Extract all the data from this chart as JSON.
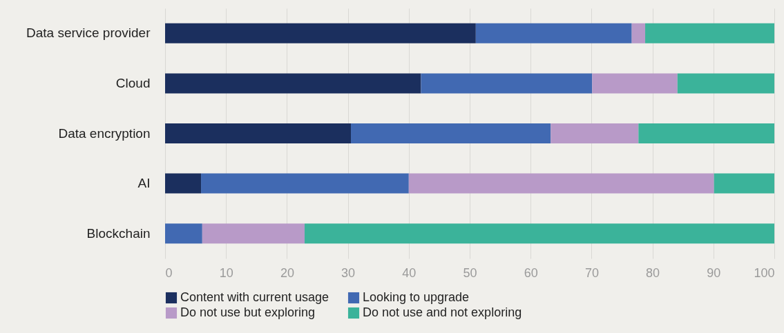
{
  "chart_data": {
    "type": "bar",
    "orientation": "horizontal",
    "stacked": true,
    "categories": [
      "Data service provider",
      "Cloud",
      "Data encryption",
      "AI",
      "Blockchain"
    ],
    "series": [
      {
        "name": "Content with current usage",
        "color": "#1b2f5e",
        "values": [
          51.0,
          42.0,
          30.5,
          5.9,
          0
        ]
      },
      {
        "name": "Looking to upgrade",
        "color": "#4169b2",
        "values": [
          25.6,
          28.1,
          32.8,
          34.1,
          6.1
        ]
      },
      {
        "name": "Do not use but exploring",
        "color": "#b89ac8",
        "values": [
          2.2,
          14.0,
          14.4,
          50.1,
          16.8
        ]
      },
      {
        "name": "Do not use and not exploring",
        "color": "#3bb39a",
        "values": [
          21.2,
          15.9,
          22.3,
          9.9,
          77.1
        ]
      }
    ],
    "xlim": [
      0,
      100
    ],
    "xticks": [
      0,
      10,
      20,
      30,
      40,
      50,
      60,
      70,
      80,
      90,
      100
    ],
    "grid": "x",
    "legend": "bottom"
  }
}
